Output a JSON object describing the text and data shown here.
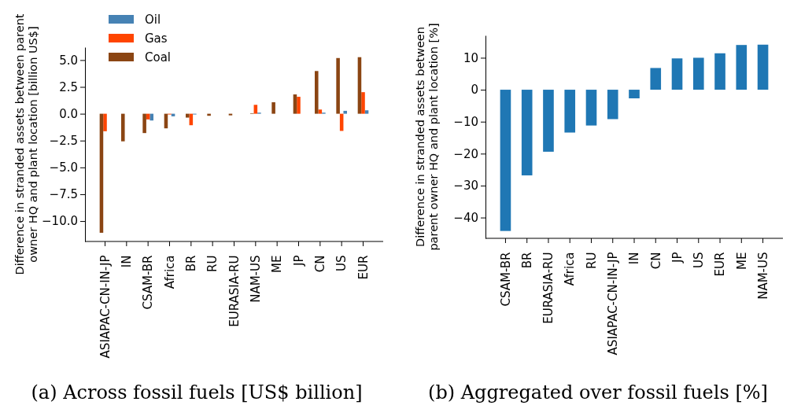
{
  "chart_data": [
    {
      "type": "bar",
      "title": "(a) Across fossil fuels [US$ billion]",
      "ylabel": "Difference in stranded assets between parent owner HQ and plant location [billion US$]",
      "categories": [
        "ASIAPAC-CN-IN-JP",
        "IN",
        "CSAM-BR",
        "Africa",
        "BR",
        "RU",
        "EURASIA-RU",
        "NAM-US",
        "ME",
        "JP",
        "CN",
        "US",
        "EUR"
      ],
      "series": [
        {
          "name": "Oil",
          "color": "#4682b4",
          "values": [
            0,
            0,
            -0.63,
            -0.24,
            -0.07,
            0,
            0,
            0.1,
            null,
            null,
            0.1,
            0.27,
            0.32
          ]
        },
        {
          "name": "Gas",
          "color": "#ff4500",
          "values": [
            -1.63,
            0,
            -0.53,
            -0.07,
            -1.07,
            0,
            0,
            0.83,
            0,
            1.58,
            0.39,
            -1.6,
            2.01
          ]
        },
        {
          "name": "Coal",
          "color": "#8b4513",
          "values": [
            -11.09,
            -2.57,
            -1.8,
            -1.36,
            -0.36,
            -0.19,
            -0.15,
            0.05,
            1.07,
            1.8,
            3.98,
            5.19,
            5.27
          ]
        }
      ],
      "ylim": [
        -11.9,
        6.2
      ],
      "yticks": [
        {
          "value": -10,
          "label": "−10.0"
        },
        {
          "value": -7.5,
          "label": "−7.5"
        },
        {
          "value": -5,
          "label": "−5.0"
        },
        {
          "value": -2.5,
          "label": "−2.5"
        },
        {
          "value": 0,
          "label": "0.0"
        },
        {
          "value": 2.5,
          "label": "2.5"
        },
        {
          "value": 5,
          "label": "5.0"
        }
      ],
      "grid": false,
      "legend": "top left"
    },
    {
      "type": "bar",
      "title": "(b) Aggregated over fossil fuels [%]",
      "ylabel": "Difference in stranded assets between parent owner HQ and plant location [%]",
      "categories": [
        "CSAM-BR",
        "BR",
        "EURASIA-RU",
        "Africa",
        "RU",
        "ASIAPAC-CN-IN-JP",
        "IN",
        "CN",
        "JP",
        "US",
        "EUR",
        "ME",
        "NAM-US"
      ],
      "values": [
        -44.2,
        -26.8,
        -19.4,
        -13.4,
        -11.2,
        -9.2,
        -2.7,
        6.8,
        9.8,
        10.0,
        11.4,
        14.0,
        14.1
      ],
      "color": "#1f77b4",
      "ylim": [
        -46.5,
        17
      ],
      "yticks": [
        {
          "value": -40,
          "label": "−40"
        },
        {
          "value": -30,
          "label": "−30"
        },
        {
          "value": -20,
          "label": "−20"
        },
        {
          "value": -10,
          "label": "−10"
        },
        0,
        10
      ],
      "grid": false
    }
  ]
}
